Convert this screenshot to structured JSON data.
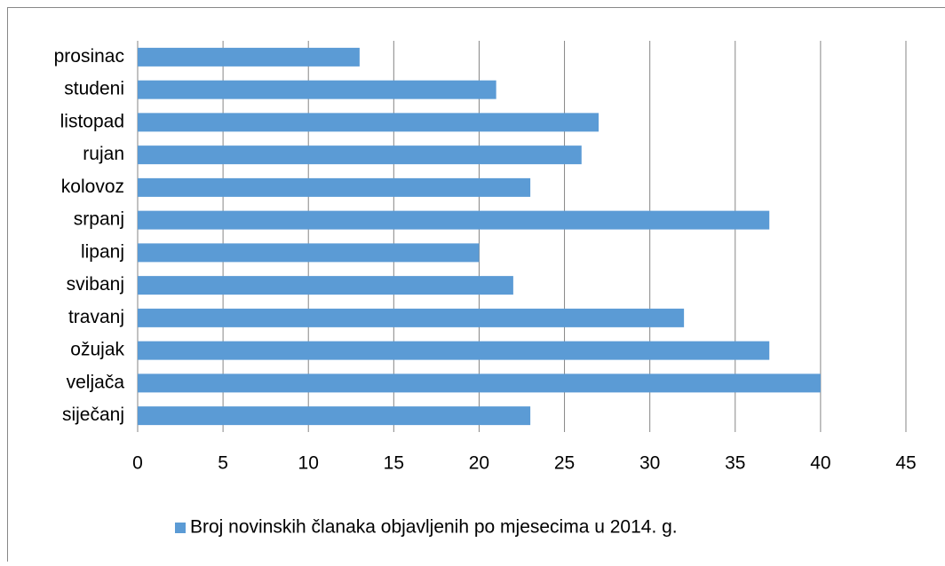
{
  "chart_data": {
    "type": "bar",
    "orientation": "horizontal",
    "categories": [
      "siječanj",
      "veljača",
      "ožujak",
      "travanj",
      "svibanj",
      "lipanj",
      "srpanj",
      "kolovoz",
      "rujan",
      "listopad",
      "studeni",
      "prosinac"
    ],
    "series": [
      {
        "name": "Broj novinskih članaka objavljenih po mjesecima u 2014. g.",
        "color": "#5b9bd5",
        "values": [
          23,
          40,
          37,
          32,
          22,
          20,
          37,
          23,
          26,
          27,
          21,
          13
        ]
      }
    ],
    "xlim": [
      0,
      45
    ],
    "xticks": [
      0,
      5,
      10,
      15,
      20,
      25,
      30,
      35,
      40,
      45
    ],
    "grid": true,
    "legend": "bottom"
  }
}
